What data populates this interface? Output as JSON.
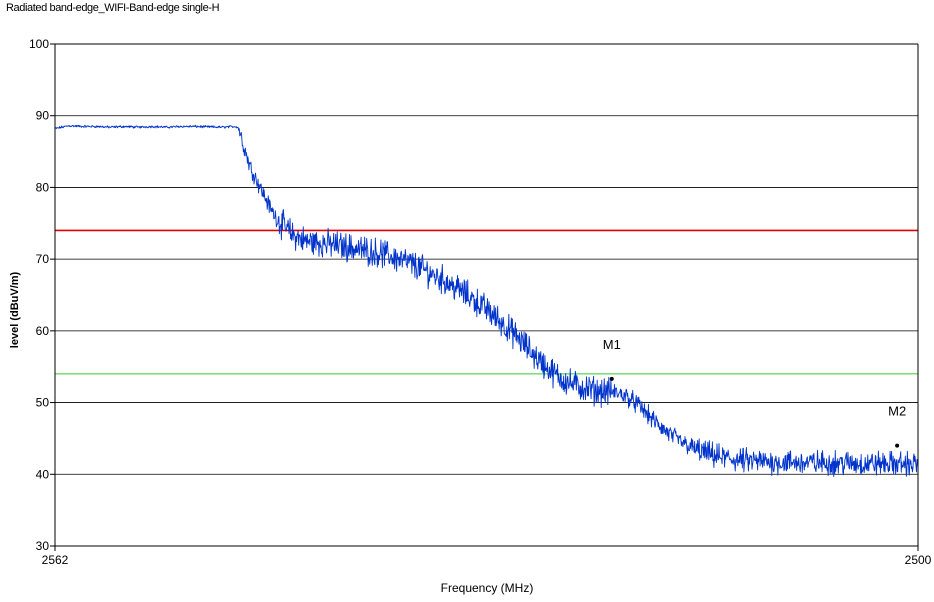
{
  "chart_data": {
    "type": "line",
    "title": "Radiated band-edge_WIFI-Band-edge single-H",
    "xlabel": "Frequency (MHz)",
    "ylabel": "level (dBuV/m)",
    "xlim": [
      2562,
      2500
    ],
    "ylim": [
      30,
      100
    ],
    "x_tick_labels": [
      "2562",
      "2500"
    ],
    "y_ticks": [
      30,
      40,
      50,
      60,
      70,
      80,
      90,
      100
    ],
    "grid": "horizontal",
    "limit_lines": [
      {
        "value": 74,
        "color": "#e00000"
      },
      {
        "value": 54,
        "color": "#33cc33"
      }
    ],
    "series": [
      {
        "color": "#0033cc",
        "points": [
          [
            2562.0,
            88.2
          ],
          [
            2561.0,
            88.6
          ],
          [
            2560.0,
            88.5
          ],
          [
            2559.0,
            88.5
          ],
          [
            2558.0,
            88.4
          ],
          [
            2557.0,
            88.5
          ],
          [
            2556.0,
            88.4
          ],
          [
            2555.0,
            88.5
          ],
          [
            2554.0,
            88.4
          ],
          [
            2553.0,
            88.5
          ],
          [
            2552.0,
            88.5
          ],
          [
            2550.0,
            88.4
          ],
          [
            2549.0,
            88.5
          ],
          [
            2548.8,
            88.3
          ],
          [
            2548.4,
            85.5
          ],
          [
            2548.0,
            83.0
          ],
          [
            2547.5,
            81.0
          ],
          [
            2547.0,
            79.0
          ],
          [
            2546.5,
            77.0
          ],
          [
            2546.0,
            75.5
          ],
          [
            2545.5,
            74.5
          ],
          [
            2545.0,
            73.5
          ],
          [
            2544.0,
            72.5
          ],
          [
            2543.0,
            72.3
          ],
          [
            2542.0,
            72.0
          ],
          [
            2541.0,
            71.7
          ],
          [
            2540.0,
            71.3
          ],
          [
            2539.0,
            71.0
          ],
          [
            2538.0,
            70.5
          ],
          [
            2537.0,
            69.8
          ],
          [
            2536.0,
            69.0
          ],
          [
            2535.0,
            68.0
          ],
          [
            2534.0,
            67.0
          ],
          [
            2533.0,
            65.8
          ],
          [
            2532.0,
            64.5
          ],
          [
            2531.0,
            63.0
          ],
          [
            2530.0,
            61.3
          ],
          [
            2529.0,
            59.5
          ],
          [
            2528.0,
            57.5
          ],
          [
            2527.0,
            55.5
          ],
          [
            2526.0,
            53.8
          ],
          [
            2525.0,
            52.7
          ],
          [
            2524.0,
            52.0
          ],
          [
            2523.0,
            51.6
          ],
          [
            2522.0,
            51.5
          ],
          [
            2521.0,
            51.0
          ],
          [
            2520.0,
            49.5
          ],
          [
            2519.0,
            47.5
          ],
          [
            2518.0,
            45.8
          ],
          [
            2517.0,
            44.5
          ],
          [
            2516.0,
            43.5
          ],
          [
            2515.0,
            42.8
          ],
          [
            2514.0,
            42.3
          ],
          [
            2513.0,
            42.0
          ],
          [
            2512.0,
            41.8
          ],
          [
            2510.0,
            41.7
          ],
          [
            2508.0,
            41.6
          ],
          [
            2506.0,
            41.6
          ],
          [
            2504.0,
            41.5
          ],
          [
            2502.0,
            41.5
          ],
          [
            2500.0,
            41.4
          ]
        ]
      }
    ],
    "markers": [
      {
        "label": "M1",
        "x": 2522.0,
        "y": 53.3
      },
      {
        "label": "M2",
        "x": 2501.5,
        "y": 44.0
      }
    ]
  }
}
